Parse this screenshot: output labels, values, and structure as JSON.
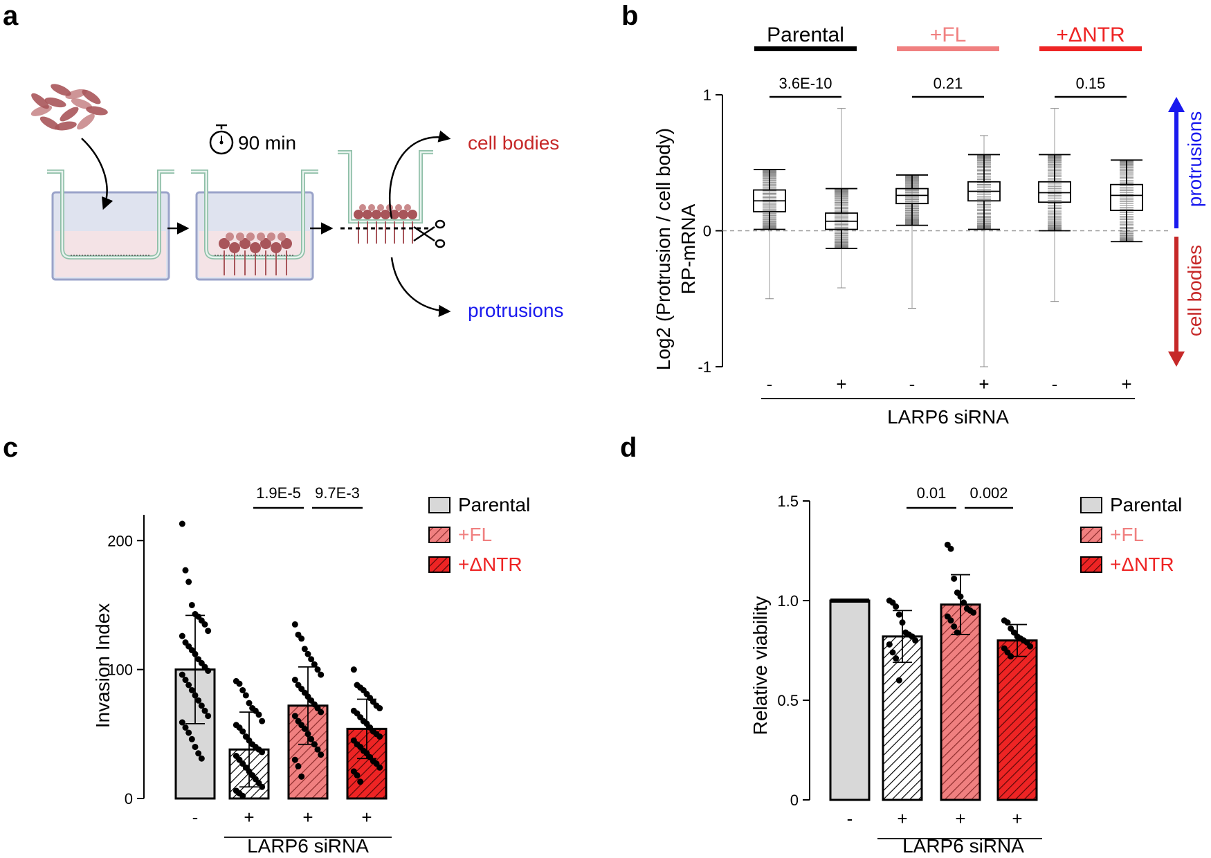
{
  "panel_a": {
    "letter": "a",
    "time_label": "90 min",
    "out_top": "cell bodies",
    "out_bottom": "protrusions",
    "colors": {
      "cell": "#a8555a",
      "cell_light": "#c98a8c",
      "insert": "#e8f3ee",
      "insert_border": "#8fbfa8",
      "well": "#dfe3ef",
      "well_border": "#9aa3c9",
      "medium": "#f4e3e6",
      "red_text": "#c62828",
      "blue_text": "#1a1aee"
    }
  },
  "chart_data": [
    {
      "panel": "b",
      "type": "box",
      "ylabel_lines": [
        "Log2 (Protrusion / cell body)",
        "RP-mRNA"
      ],
      "ylim": [
        -1,
        1
      ],
      "yticks": [
        -1,
        0,
        1
      ],
      "reference_line": 0,
      "groups": [
        {
          "name": "Parental",
          "color": "#000000"
        },
        {
          "name": "+FL",
          "color": "#f08080"
        },
        {
          "name": "+ΔNTR",
          "color": "#ee2424"
        }
      ],
      "series": [
        {
          "group": "Parental",
          "siRNA": "-",
          "whisker_low": 0.01,
          "q1": 0.14,
          "median": 0.22,
          "q3": 0.3,
          "whisker_high": 0.45,
          "range_min": -0.5,
          "range_max": 0.45
        },
        {
          "group": "Parental",
          "siRNA": "+",
          "whisker_low": -0.13,
          "q1": 0.01,
          "median": 0.07,
          "q3": 0.13,
          "whisker_high": 0.31,
          "range_min": -0.42,
          "range_max": 0.9
        },
        {
          "group": "+FL",
          "siRNA": "-",
          "whisker_low": 0.04,
          "q1": 0.2,
          "median": 0.26,
          "q3": 0.31,
          "whisker_high": 0.41,
          "range_min": -0.57,
          "range_max": 0.41
        },
        {
          "group": "+FL",
          "siRNA": "+",
          "whisker_low": 0.01,
          "q1": 0.22,
          "median": 0.29,
          "q3": 0.36,
          "whisker_high": 0.56,
          "range_min": -1.0,
          "range_max": 0.7
        },
        {
          "group": "+ΔNTR",
          "siRNA": "-",
          "whisker_low": 0.0,
          "q1": 0.21,
          "median": 0.28,
          "q3": 0.36,
          "whisker_high": 0.56,
          "range_min": -0.52,
          "range_max": 0.9
        },
        {
          "group": "+ΔNTR",
          "siRNA": "+",
          "whisker_low": -0.08,
          "q1": 0.15,
          "median": 0.26,
          "q3": 0.34,
          "whisker_high": 0.52,
          "range_min": -0.08,
          "range_max": 0.52
        }
      ],
      "pvalues": [
        {
          "label": "3.6E-10",
          "between": [
            0,
            1
          ]
        },
        {
          "label": "0.21",
          "between": [
            2,
            3
          ]
        },
        {
          "label": "0.15",
          "between": [
            4,
            5
          ]
        }
      ],
      "xlabel": "LARP6 siRNA",
      "side_labels": {
        "up": "protrusions",
        "down": "cell bodies",
        "up_color": "#1a1aee",
        "down_color": "#c62828"
      }
    },
    {
      "panel": "c",
      "type": "bar",
      "ylabel": "Invasion Index",
      "ylim": [
        0,
        220
      ],
      "yticks": [
        0,
        100,
        200
      ],
      "xlabel": "LARP6 siRNA",
      "categories": [
        "-",
        "+",
        "+",
        "+"
      ],
      "legend": [
        "Parental",
        "+FL",
        "+ΔNTR"
      ],
      "series": [
        {
          "name": "Parental",
          "value": 100,
          "sd": 42,
          "fill": "#d8d8d8",
          "pattern": "none",
          "points": [
            213,
            177,
            168,
            150,
            143,
            141,
            138,
            135,
            130,
            126,
            121,
            118,
            115,
            112,
            108,
            105,
            102,
            99,
            96,
            92,
            88,
            84,
            80,
            76,
            72,
            68,
            64,
            59,
            55,
            51,
            46,
            40,
            35,
            31
          ]
        },
        {
          "name": "Parental",
          "value": 38,
          "sd": 29,
          "fill": "#ffffff",
          "pattern": "hatch",
          "points": [
            91,
            89,
            84,
            80,
            74,
            70,
            68,
            65,
            60,
            57,
            55,
            52,
            48,
            45,
            42,
            40,
            38,
            36,
            33,
            30,
            27,
            24,
            21,
            18,
            15,
            12,
            9,
            6,
            4,
            2
          ]
        },
        {
          "name": "+FL",
          "value": 72,
          "sd": 30,
          "fill": "#f08080",
          "pattern": "hatch",
          "points": [
            135,
            127,
            124,
            116,
            112,
            108,
            104,
            100,
            96,
            92,
            88,
            85,
            82,
            79,
            76,
            73,
            70,
            67,
            64,
            60,
            57,
            54,
            50,
            46,
            42,
            38,
            34,
            30,
            25,
            17
          ]
        },
        {
          "name": "+ΔNTR",
          "value": 54,
          "sd": 23,
          "fill": "#ee2424",
          "pattern": "hatch",
          "points": [
            100,
            88,
            86,
            84,
            81,
            78,
            75,
            72,
            70,
            68,
            66,
            63,
            60,
            58,
            55,
            52,
            50,
            48,
            45,
            42,
            40,
            37,
            35,
            32,
            29,
            27,
            24,
            21,
            18,
            13
          ]
        }
      ],
      "pvalues": [
        {
          "label": "1.9E-5",
          "between": [
            1,
            2
          ]
        },
        {
          "label": "9.7E-3",
          "between": [
            2,
            3
          ]
        }
      ]
    },
    {
      "panel": "d",
      "type": "bar",
      "ylabel": "Relative viability",
      "ylim": [
        0,
        1.5
      ],
      "yticks": [
        0,
        0.5,
        1.0,
        1.5
      ],
      "ytick_labels": [
        "0",
        "0.5",
        "1.0",
        "1.5"
      ],
      "xlabel": "LARP6 siRNA",
      "categories": [
        "-",
        "+",
        "+",
        "+"
      ],
      "legend": [
        "Parental",
        "+FL",
        "+ΔNTR"
      ],
      "series": [
        {
          "name": "Parental",
          "value": 1.0,
          "sd": 0,
          "fill": "#d8d8d8",
          "pattern": "none",
          "points": []
        },
        {
          "name": "Parental",
          "value": 0.82,
          "sd": 0.13,
          "fill": "#ffffff",
          "pattern": "hatch",
          "points": [
            1.0,
            0.99,
            0.97,
            0.93,
            0.89,
            0.84,
            0.83,
            0.82,
            0.8,
            0.78,
            0.74,
            0.71,
            0.6
          ]
        },
        {
          "name": "+FL",
          "value": 0.98,
          "sd": 0.15,
          "fill": "#f08080",
          "pattern": "hatch",
          "points": [
            1.28,
            1.26,
            1.11,
            1.04,
            1.02,
            0.99,
            0.96,
            0.95,
            0.94,
            0.92,
            0.9,
            0.87,
            0.84
          ]
        },
        {
          "name": "+ΔNTR",
          "value": 0.8,
          "sd": 0.08,
          "fill": "#ee2424",
          "pattern": "hatch",
          "points": [
            0.9,
            0.89,
            0.86,
            0.84,
            0.82,
            0.81,
            0.8,
            0.79,
            0.77,
            0.76,
            0.74,
            0.72
          ]
        }
      ],
      "pvalues": [
        {
          "label": "0.01",
          "between": [
            1,
            2
          ]
        },
        {
          "label": "0.002",
          "between": [
            2,
            3
          ]
        }
      ]
    }
  ],
  "panel_letters": {
    "b": "b",
    "c": "c",
    "d": "d"
  }
}
